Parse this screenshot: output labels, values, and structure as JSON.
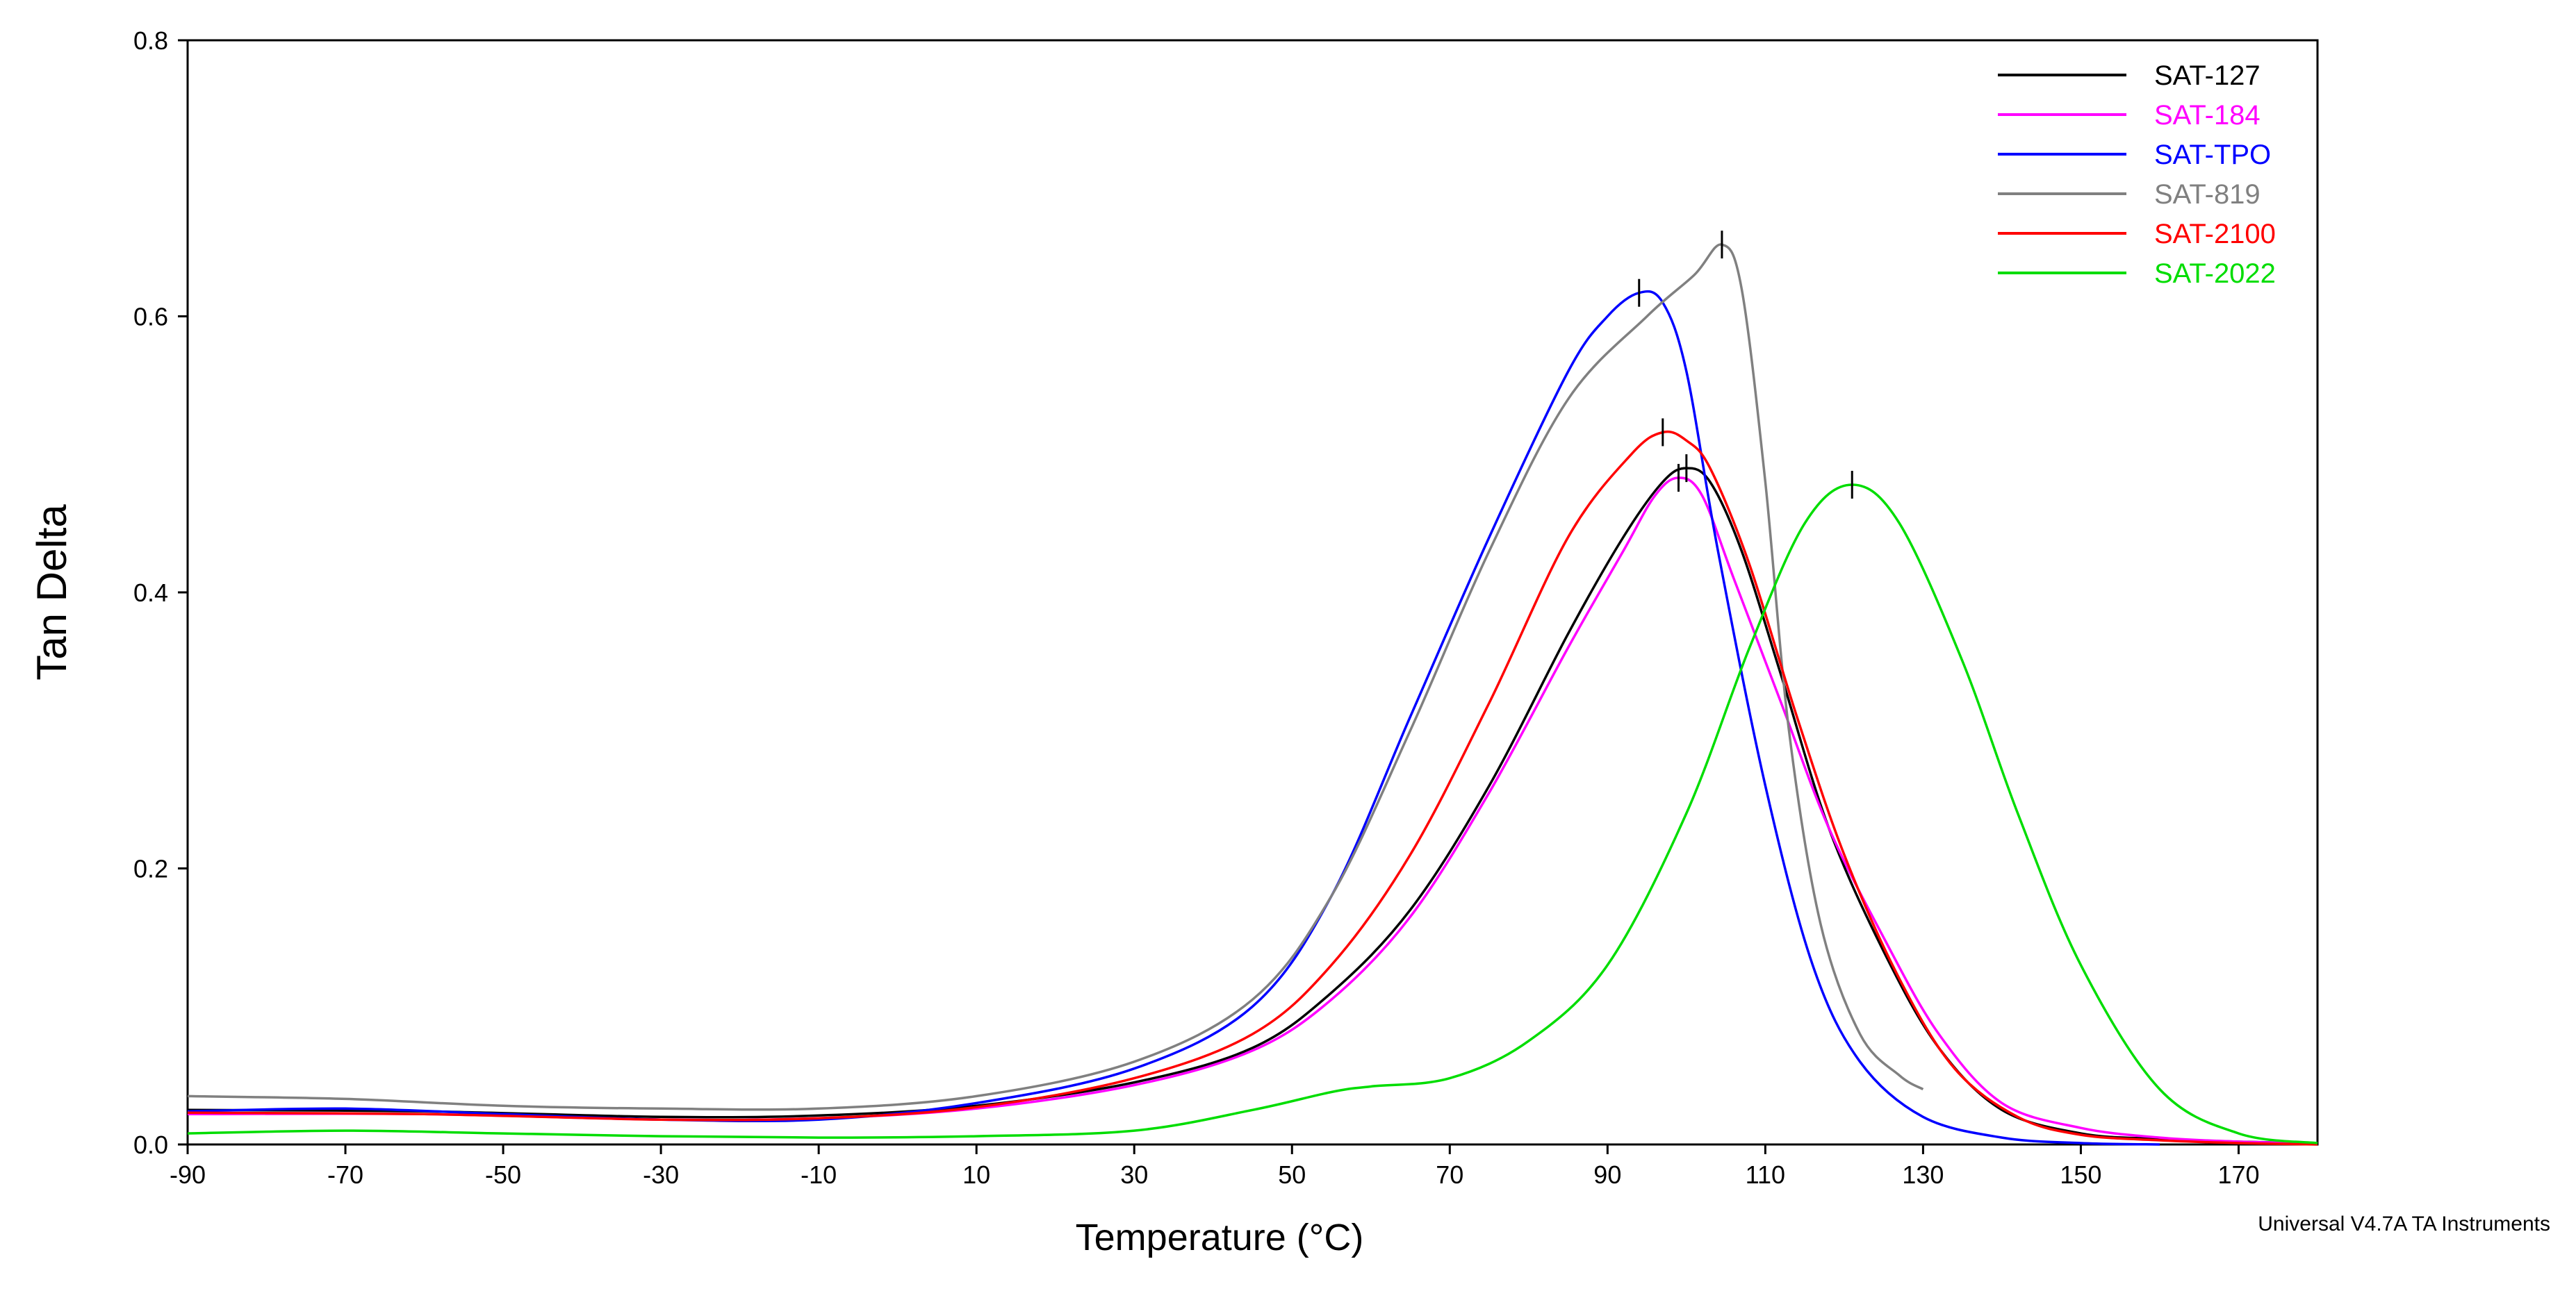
{
  "chart_data": {
    "type": "line",
    "title": "",
    "xlabel": "Temperature (°C)",
    "ylabel": "Tan Delta",
    "xlim": [
      -90,
      180
    ],
    "ylim": [
      0,
      0.8
    ],
    "xticks": [
      -90,
      -70,
      -50,
      -30,
      -10,
      10,
      30,
      50,
      70,
      90,
      110,
      130,
      150,
      170
    ],
    "yticks": [
      0.0,
      0.2,
      0.4,
      0.6,
      0.8
    ],
    "ytick_labels": [
      "0.0",
      "0.2",
      "0.4",
      "0.6",
      "0.8"
    ],
    "grid": false,
    "legend_position": "top-right",
    "footer": "Universal V4.7A TA Instruments",
    "series": [
      {
        "name": "SAT-127",
        "color": "#000000",
        "x": [
          -90,
          -60,
          -30,
          -10,
          10,
          30,
          45,
          55,
          65,
          75,
          85,
          92,
          97,
          100,
          103,
          107,
          112,
          118,
          125,
          132,
          140,
          150,
          160,
          170,
          180
        ],
        "y": [
          0.025,
          0.024,
          0.02,
          0.021,
          0.028,
          0.045,
          0.07,
          0.11,
          0.17,
          0.26,
          0.37,
          0.44,
          0.48,
          0.49,
          0.48,
          0.43,
          0.34,
          0.23,
          0.14,
          0.07,
          0.025,
          0.008,
          0.004,
          0.002,
          0.001
        ],
        "peak": [
          100,
          0.49
        ]
      },
      {
        "name": "SAT-184",
        "color": "#ff00ff",
        "x": [
          -90,
          -60,
          -30,
          -10,
          10,
          30,
          45,
          55,
          65,
          75,
          85,
          92,
          96,
          99,
          102,
          106,
          112,
          118,
          125,
          132,
          140,
          150,
          160,
          170,
          180
        ],
        "y": [
          0.022,
          0.022,
          0.018,
          0.019,
          0.026,
          0.043,
          0.068,
          0.105,
          0.165,
          0.255,
          0.36,
          0.43,
          0.47,
          0.483,
          0.47,
          0.41,
          0.32,
          0.23,
          0.15,
          0.08,
          0.03,
          0.012,
          0.005,
          0.002,
          0.001
        ],
        "peak": [
          99,
          0.483
        ]
      },
      {
        "name": "SAT-TPO",
        "color": "#0000ff",
        "x": [
          -90,
          -70,
          -50,
          -30,
          -10,
          10,
          30,
          45,
          55,
          65,
          75,
          85,
          90,
          94,
          97,
          100,
          104,
          110,
          116,
          122,
          130,
          140,
          150,
          160
        ],
        "y": [
          0.024,
          0.026,
          0.022,
          0.018,
          0.018,
          0.03,
          0.055,
          0.1,
          0.18,
          0.31,
          0.44,
          0.56,
          0.6,
          0.617,
          0.61,
          0.56,
          0.43,
          0.26,
          0.13,
          0.06,
          0.02,
          0.005,
          0.001,
          0.0
        ],
        "peak": [
          94,
          0.617
        ]
      },
      {
        "name": "SAT-819",
        "color": "#808080",
        "x": [
          -90,
          -70,
          -50,
          -30,
          -10,
          10,
          30,
          45,
          55,
          65,
          75,
          85,
          95,
          101,
          104.5,
          107,
          110,
          113,
          117,
          122,
          127,
          130
        ],
        "y": [
          0.035,
          0.033,
          0.028,
          0.026,
          0.026,
          0.035,
          0.06,
          0.105,
          0.18,
          0.3,
          0.43,
          0.54,
          0.6,
          0.63,
          0.652,
          0.62,
          0.48,
          0.3,
          0.16,
          0.08,
          0.05,
          0.04
        ],
        "peak": [
          104.5,
          0.652
        ]
      },
      {
        "name": "SAT-2100",
        "color": "#ff0000",
        "x": [
          -90,
          -60,
          -30,
          -10,
          10,
          30,
          45,
          55,
          65,
          75,
          85,
          93,
          97,
          100,
          103,
          108,
          114,
          120,
          127,
          134,
          142,
          150,
          160,
          170,
          180
        ],
        "y": [
          0.023,
          0.022,
          0.018,
          0.019,
          0.027,
          0.048,
          0.08,
          0.13,
          0.21,
          0.32,
          0.44,
          0.5,
          0.516,
          0.51,
          0.49,
          0.42,
          0.31,
          0.21,
          0.12,
          0.055,
          0.02,
          0.007,
          0.003,
          0.001,
          0.0
        ],
        "peak": [
          97,
          0.516
        ]
      },
      {
        "name": "SAT-2022",
        "color": "#00dd00",
        "x": [
          -90,
          -70,
          -50,
          -30,
          -10,
          10,
          30,
          45,
          55,
          60,
          70,
          80,
          90,
          100,
          108,
          115,
          121,
          127,
          135,
          142,
          150,
          160,
          170,
          180
        ],
        "y": [
          0.008,
          0.01,
          0.008,
          0.006,
          0.005,
          0.006,
          0.01,
          0.025,
          0.038,
          0.042,
          0.048,
          0.075,
          0.13,
          0.24,
          0.36,
          0.45,
          0.478,
          0.45,
          0.35,
          0.24,
          0.13,
          0.04,
          0.008,
          0.001
        ],
        "peak": [
          121,
          0.478
        ]
      }
    ]
  }
}
